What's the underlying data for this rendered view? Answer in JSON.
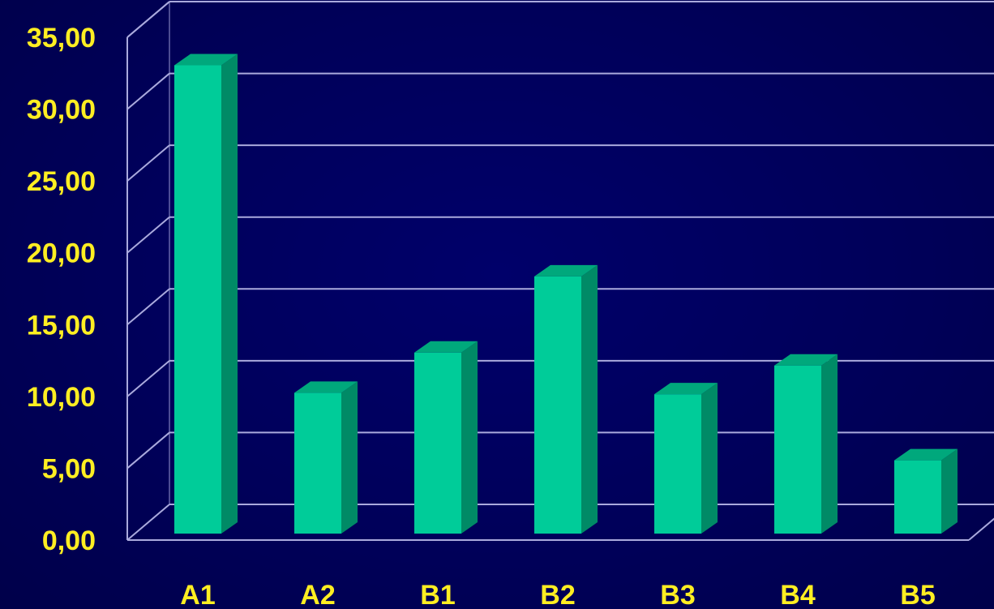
{
  "chart_data": {
    "type": "bar",
    "categories": [
      "A1",
      "A2",
      "B1",
      "B2",
      "B3",
      "B4",
      "B5"
    ],
    "values": [
      32.6,
      9.8,
      12.6,
      17.9,
      9.7,
      11.7,
      5.1
    ],
    "y_ticks": [
      "0,00",
      "5,00",
      "10,00",
      "15,00",
      "20,00",
      "25,00",
      "30,00",
      "35,00"
    ],
    "ylim": [
      0,
      35
    ],
    "title": "",
    "xlabel": "",
    "ylabel": "",
    "grid": true,
    "legend": "none",
    "style": "3d-column",
    "colors": {
      "background": "#000055",
      "bar_front": "#00cc99",
      "bar_side": "#008a66",
      "bar_top": "#00a87c",
      "labels": "#ffee22",
      "grid": "#aaaadd"
    }
  }
}
